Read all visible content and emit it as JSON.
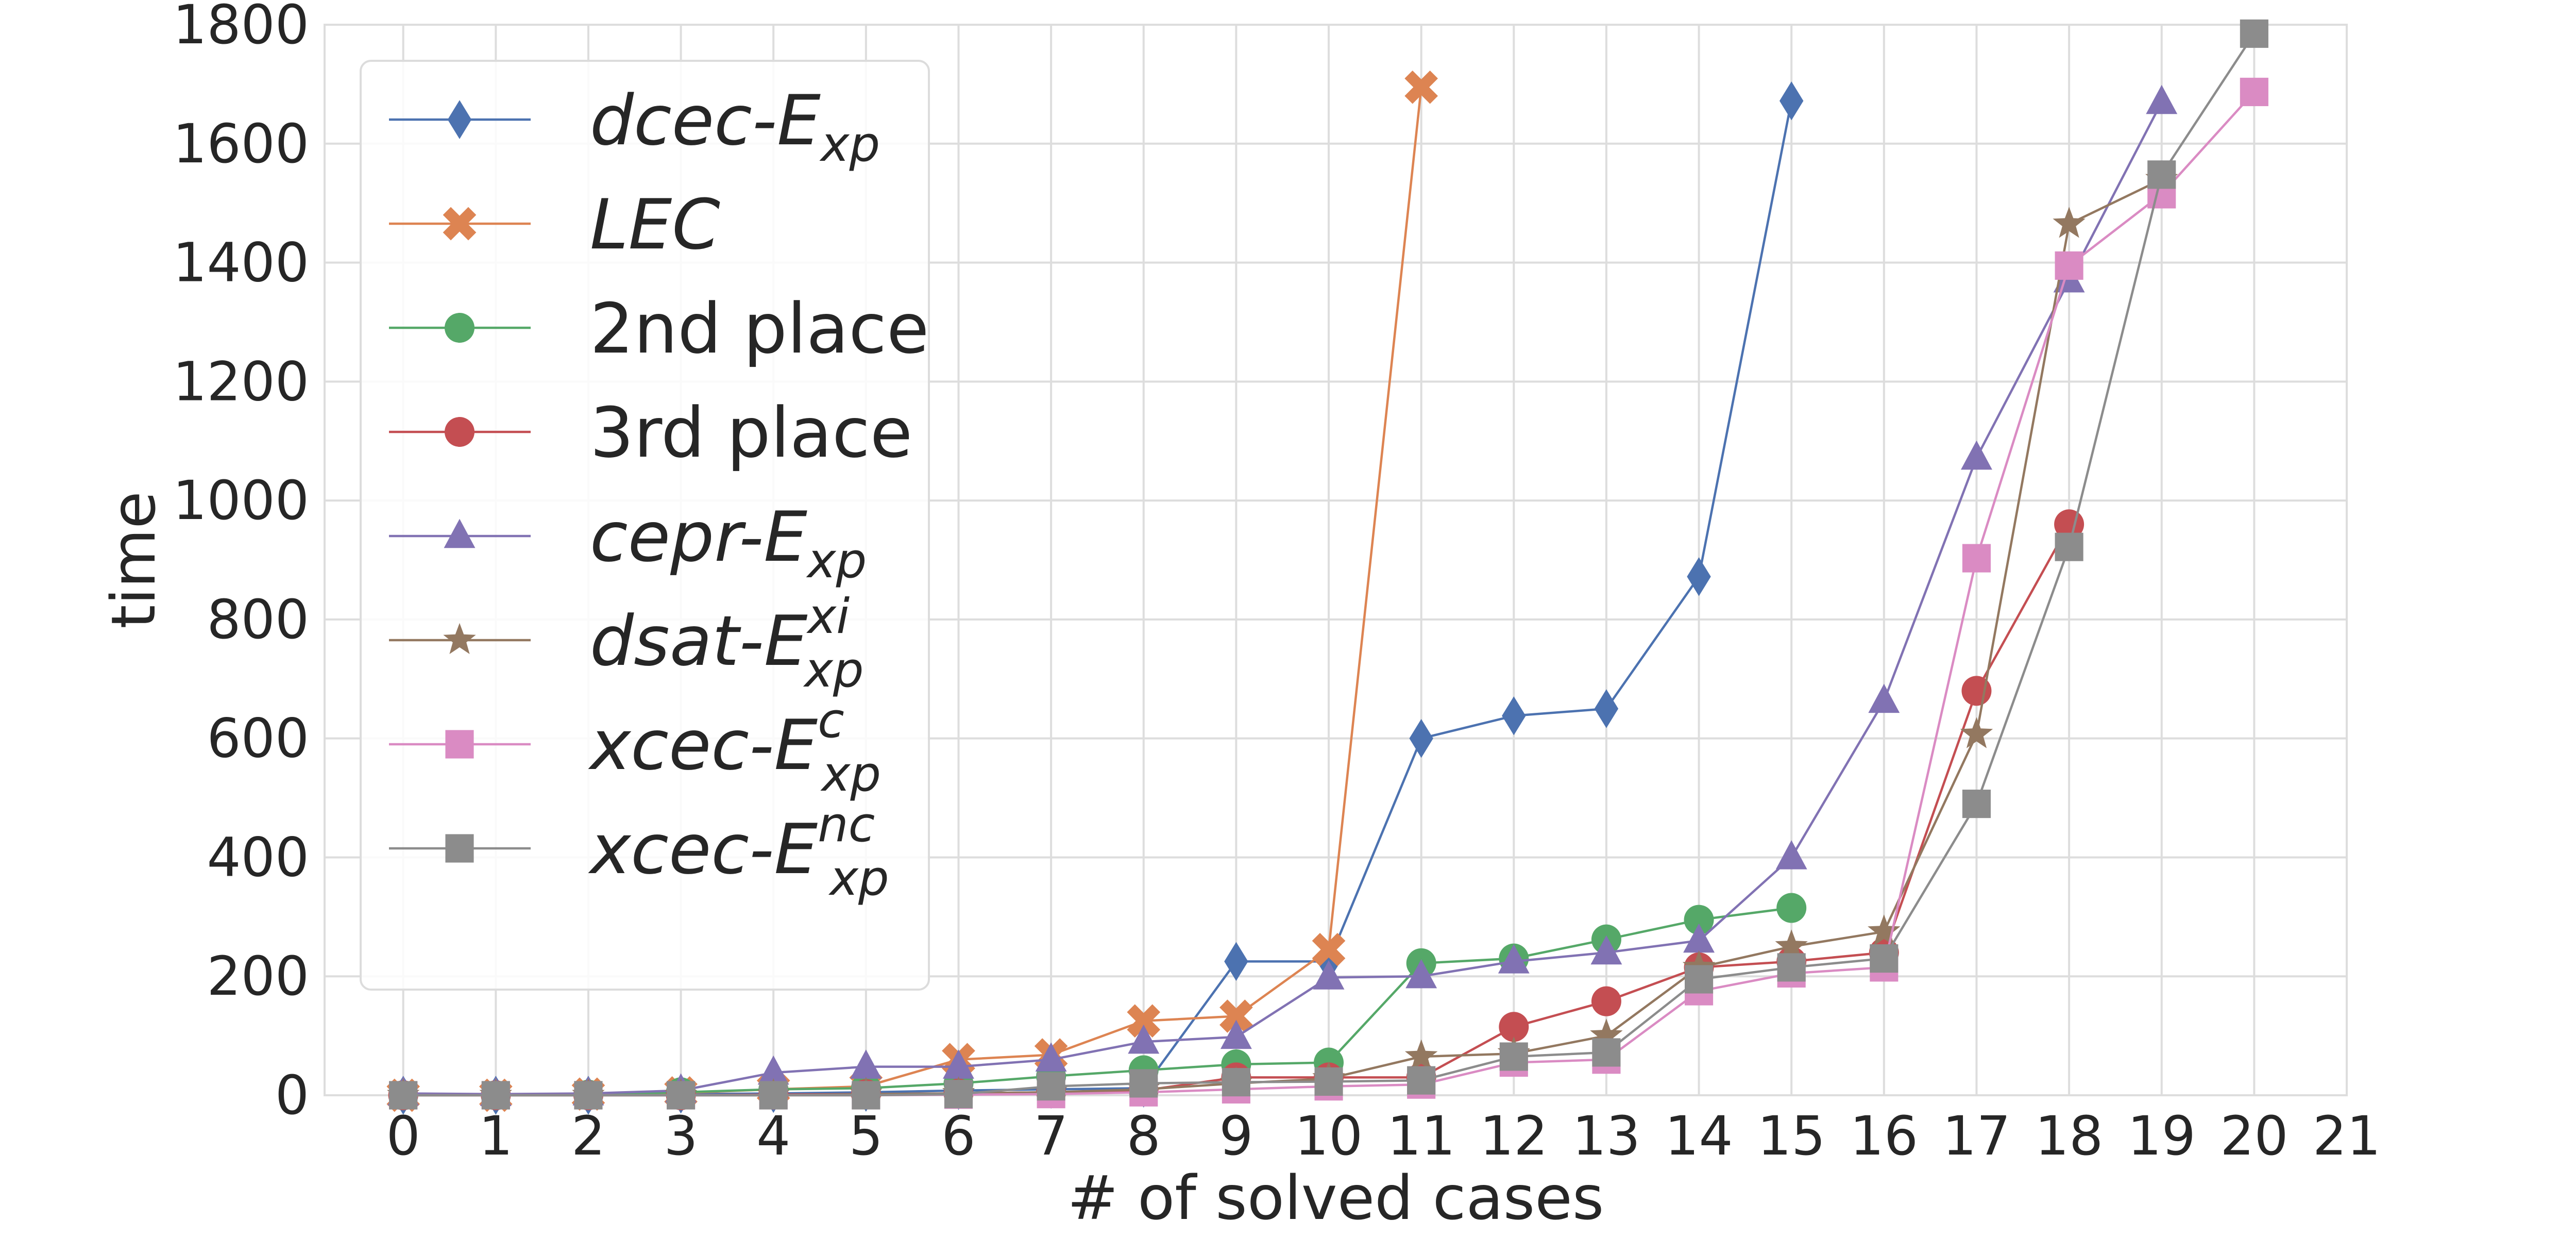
{
  "chart_data": {
    "type": "line",
    "xlabel": "# of solved cases",
    "ylabel": "time",
    "xlim": [
      -0.85,
      21
    ],
    "ylim": [
      0,
      1800
    ],
    "xticks": [
      0,
      1,
      2,
      3,
      4,
      5,
      6,
      7,
      8,
      9,
      10,
      11,
      12,
      13,
      14,
      15,
      16,
      17,
      18,
      19,
      20,
      21
    ],
    "yticks": [
      0,
      200,
      400,
      600,
      800,
      1000,
      1200,
      1400,
      1600,
      1800
    ],
    "grid": true,
    "legend_position": "top-left",
    "series": [
      {
        "name": "dcec-E",
        "name_sub": "xp",
        "name_sup": "",
        "italic": true,
        "color": "#4C72B0",
        "marker": "diamond",
        "x": [
          0,
          1,
          2,
          3,
          4,
          5,
          6,
          7,
          8,
          9,
          10,
          11,
          12,
          13,
          14,
          15
        ],
        "y": [
          0,
          0,
          0,
          2,
          3,
          5,
          8,
          10,
          12,
          225,
          225,
          600,
          638,
          650,
          872,
          1672
        ]
      },
      {
        "name": "LEC",
        "name_sub": "",
        "name_sup": "",
        "italic": true,
        "color": "#DD8452",
        "marker": "x",
        "x": [
          0,
          1,
          2,
          3,
          4,
          5,
          6,
          7,
          8,
          9,
          10,
          11
        ],
        "y": [
          0,
          0,
          2,
          4,
          10,
          15,
          60,
          68,
          125,
          133,
          245,
          1695
        ]
      },
      {
        "name": "2nd place",
        "name_sub": "",
        "name_sup": "",
        "italic": false,
        "color": "#55A868",
        "marker": "circle",
        "x": [
          0,
          1,
          2,
          3,
          4,
          5,
          6,
          7,
          8,
          9,
          10,
          11,
          12,
          13,
          14,
          15
        ],
        "y": [
          0,
          0,
          1,
          5,
          10,
          12,
          20,
          32,
          42,
          52,
          55,
          222,
          230,
          262,
          295,
          315
        ]
      },
      {
        "name": "3rd place",
        "name_sub": "",
        "name_sup": "",
        "italic": false,
        "color": "#C44E52",
        "marker": "circle",
        "x": [
          0,
          1,
          2,
          3,
          4,
          5,
          6,
          7,
          8,
          9,
          10,
          11,
          12,
          13,
          14,
          15,
          16,
          17,
          18
        ],
        "y": [
          0,
          0,
          0,
          0,
          1,
          2,
          3,
          5,
          8,
          30,
          30,
          30,
          115,
          158,
          215,
          225,
          240,
          680,
          960
        ]
      },
      {
        "name": "cepr-E",
        "name_sub": "xp",
        "name_sup": "",
        "italic": true,
        "color": "#8172B3",
        "marker": "triangle",
        "x": [
          0,
          1,
          2,
          3,
          4,
          5,
          6,
          7,
          8,
          9,
          10,
          11,
          12,
          13,
          14,
          15,
          16,
          17,
          18,
          19
        ],
        "y": [
          3,
          2,
          3,
          8,
          38,
          48,
          48,
          60,
          90,
          98,
          198,
          200,
          225,
          240,
          260,
          400,
          663,
          1072,
          1370,
          1670
        ]
      },
      {
        "name": "dsat-E",
        "name_sub": "xp",
        "name_sup": "xi",
        "italic": true,
        "color": "#937860",
        "marker": "star",
        "x": [
          0,
          1,
          2,
          3,
          4,
          5,
          6,
          7,
          8,
          9,
          10,
          11,
          12,
          13,
          14,
          15,
          16,
          17,
          18,
          19
        ],
        "y": [
          0,
          0,
          0,
          0,
          0,
          2,
          3,
          5,
          10,
          20,
          28,
          65,
          70,
          100,
          215,
          250,
          275,
          607,
          1465,
          1540
        ]
      },
      {
        "name": "xcec-E",
        "name_sub": "xp",
        "name_sup": "c",
        "italic": true,
        "color": "#DA8BC3",
        "marker": "square",
        "x": [
          0,
          1,
          2,
          3,
          4,
          5,
          6,
          7,
          8,
          9,
          10,
          11,
          12,
          13,
          14,
          15,
          16,
          17,
          18,
          19,
          20
        ],
        "y": [
          0,
          0,
          0,
          0,
          0,
          0,
          1,
          2,
          5,
          10,
          15,
          18,
          55,
          60,
          175,
          205,
          215,
          903,
          1395,
          1515,
          1687
        ]
      },
      {
        "name": "xcec-E",
        "name_sub": "xp",
        "name_sup": "nc",
        "italic": true,
        "color": "#8C8C8C",
        "marker": "square",
        "x": [
          0,
          1,
          2,
          3,
          4,
          5,
          6,
          7,
          8,
          9,
          10,
          11,
          12,
          13,
          14,
          15,
          16,
          17,
          18,
          19,
          20
        ],
        "y": [
          0,
          0,
          0,
          0,
          0,
          0,
          2,
          15,
          20,
          22,
          23,
          25,
          65,
          72,
          195,
          215,
          230,
          490,
          922,
          1548,
          1785
        ]
      }
    ]
  }
}
